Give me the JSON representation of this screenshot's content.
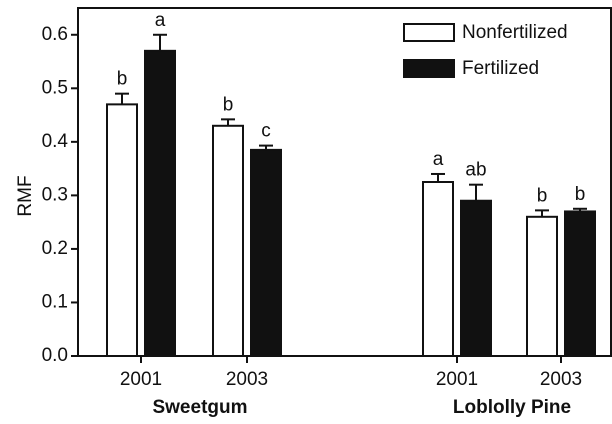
{
  "chart_data": {
    "type": "bar",
    "y_label": "RMF",
    "categories": [
      "2001",
      "2003",
      "2001",
      "2003"
    ],
    "group_labels": [
      "Sweetgum",
      "Loblolly Pine"
    ],
    "series": [
      {
        "name": "Nonfertilized",
        "color": "#ffffff",
        "values": [
          0.47,
          0.43,
          0.325,
          0.26
        ],
        "errors": [
          0.02,
          0.012,
          0.015,
          0.012
        ],
        "letters": [
          "b",
          "b",
          "a",
          "b"
        ]
      },
      {
        "name": "Fertilized",
        "color": "#111111",
        "values": [
          0.57,
          0.385,
          0.29,
          0.27
        ],
        "errors": [
          0.03,
          0.008,
          0.03,
          0.005
        ],
        "letters": [
          "a",
          "c",
          "ab",
          "b"
        ]
      }
    ],
    "ylim": [
      0,
      0.65
    ],
    "yticks": [
      {
        "value": 0,
        "label": "0.0"
      },
      0.1,
      0.2,
      0.3,
      0.4,
      0.5,
      0.6
    ],
    "legend": "upper right"
  }
}
